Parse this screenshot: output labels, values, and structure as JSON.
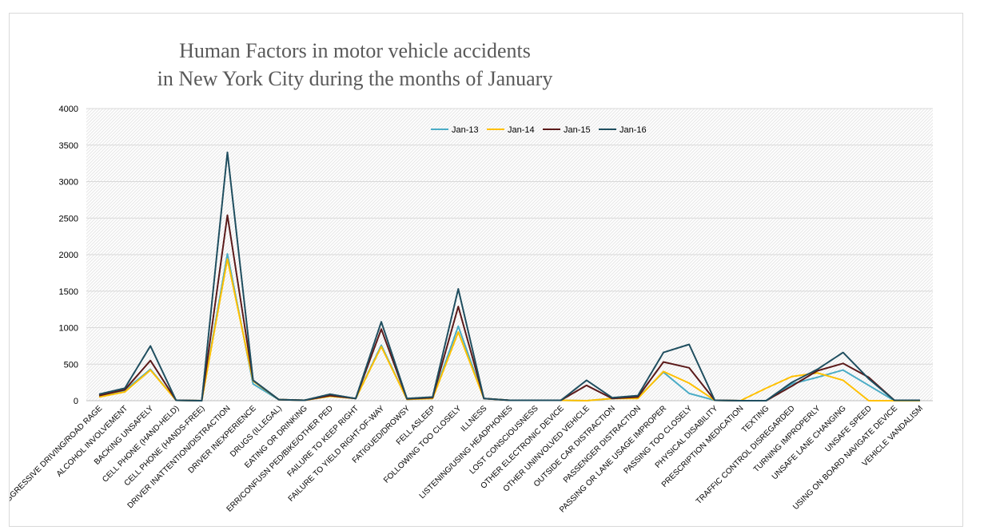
{
  "chart_data": {
    "type": "line",
    "title_lines": [
      "Human Factors in motor vehicle accidents",
      "in New York City during the months of January"
    ],
    "xlabel": "",
    "ylabel": "",
    "ylim": [
      0,
      4000
    ],
    "yticks": [
      0,
      500,
      1000,
      1500,
      2000,
      2500,
      3000,
      3500,
      4000
    ],
    "grid": true,
    "legend_position": "top-center",
    "categories": [
      "AGGRESSIVE DRIVING/ROAD RAGE",
      "ALCOHOL INVOLVEMENT",
      "BACKING UNSAFELY",
      "CELL PHONE (HAND-HELD)",
      "CELL PHONE (HANDS-FREE)",
      "DRIVER INATTENTION/DISTRACTION",
      "DRIVER INEXPERIENCE",
      "DRUGS (ILLEGAL)",
      "EATING OR DRINKING",
      "ERR/CONFUSN PED/BIKE/OTHER PED",
      "FAILURE TO KEEP RIGHT",
      "FAILURE TO YIELD RIGHT-OF-WAY",
      "FATIGUED/DROWSY",
      "FELL ASLEEP",
      "FOLLOWING TOO CLOSELY",
      "ILLNESS",
      "LISTENING/USING HEADPHONES",
      "LOST CONSCIOUSNESS",
      "OTHER ELECTRONIC DEVICE",
      "OTHER UNINVOLVED VEHICLE",
      "OUTSIDE CAR DISTRACTION",
      "PASSENGER DISTRACTION",
      "PASSING OR LANE USAGE IMPROPER",
      "PASSING TOO CLOSELY",
      "PHYSICAL DISABILITY",
      "PRESCRIPTION MEDICATION",
      "TEXTING",
      "TRAFFIC CONTROL DISREGARDED",
      "TURNING IMPROPERLY",
      "UNSAFE LANE CHANGING",
      "UNSAFE SPEED",
      "USING ON BOARD NAVIGATE DEVICE",
      "VEHICLE VANDALISM"
    ],
    "series": [
      {
        "name": "Jan-13",
        "color": "#4bacc6",
        "values": [
          60,
          140,
          430,
          5,
          0,
          2010,
          230,
          15,
          5,
          70,
          30,
          760,
          20,
          30,
          1020,
          30,
          5,
          5,
          5,
          0,
          30,
          40,
          390,
          100,
          5,
          0,
          0,
          230,
          320,
          420,
          210,
          0,
          0
        ]
      },
      {
        "name": "Jan-14",
        "color": "#ffc000",
        "values": [
          50,
          120,
          420,
          5,
          0,
          1940,
          270,
          15,
          5,
          60,
          30,
          740,
          20,
          30,
          940,
          30,
          5,
          5,
          5,
          0,
          30,
          30,
          400,
          240,
          5,
          0,
          170,
          330,
          380,
          280,
          0,
          0,
          0
        ]
      },
      {
        "name": "Jan-15",
        "color": "#5b1a1a",
        "values": [
          70,
          150,
          550,
          5,
          0,
          2540,
          280,
          15,
          5,
          70,
          30,
          980,
          25,
          40,
          1290,
          30,
          5,
          5,
          5,
          210,
          30,
          50,
          530,
          450,
          5,
          0,
          0,
          200,
          410,
          510,
          320,
          5,
          5
        ]
      },
      {
        "name": "Jan-16",
        "color": "#1f4e5f",
        "values": [
          90,
          170,
          750,
          5,
          0,
          3400,
          280,
          15,
          5,
          90,
          30,
          1080,
          30,
          50,
          1530,
          30,
          5,
          5,
          5,
          280,
          40,
          70,
          660,
          770,
          5,
          0,
          0,
          250,
          430,
          660,
          300,
          5,
          5
        ]
      }
    ]
  }
}
